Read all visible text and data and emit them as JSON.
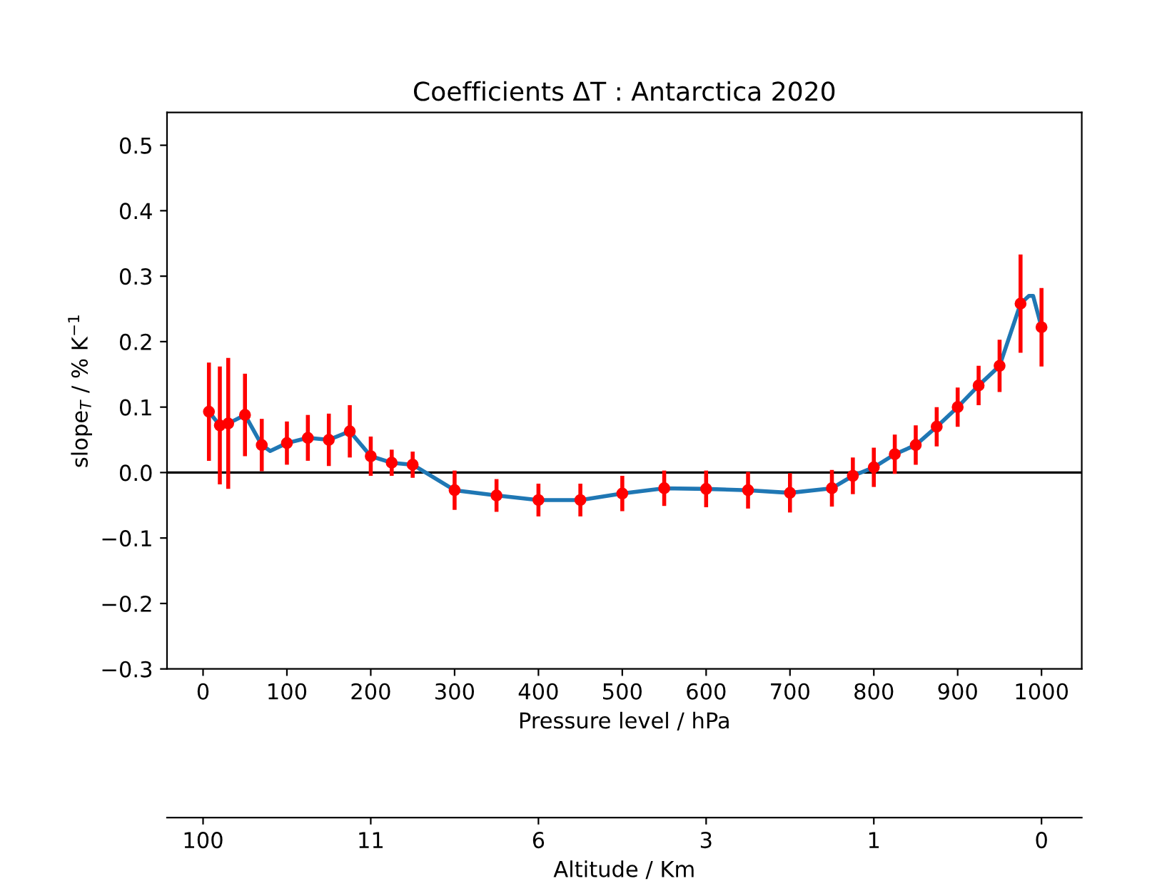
{
  "chart_data": {
    "type": "scatter",
    "title": "Coefficients ΔT : Antarctica 2020",
    "xlabel": "Pressure level / hPa",
    "ylabel": "slope$_{T}$ / % K$^{−1}$",
    "x2label": "Altitude / Km",
    "xlim": [
      -43,
      1048
    ],
    "xticks": [
      0,
      100,
      200,
      300,
      400,
      500,
      600,
      700,
      800,
      900,
      1000
    ],
    "annotations": [
      "100",
      "11",
      "6",
      "3",
      "1",
      "0"
    ],
    "ylim": [
      -0.3,
      0.55
    ],
    "yticks": [
      -0.3,
      -0.2,
      -0.1,
      {
        "value": 0,
        "label": "0.0"
      },
      0.1,
      0.2,
      0.3,
      0.4,
      0.5
    ],
    "grid": false,
    "ref_lines": [
      {
        "axis": "y",
        "value": 0,
        "color": "#000000"
      }
    ],
    "series": [
      {
        "type": "line",
        "color": "#1f77b4",
        "marker": "none",
        "line_style": "solid",
        "x": [
          7,
          20,
          30,
          50,
          70,
          80,
          100,
          125,
          150,
          175,
          200,
          225,
          250,
          300,
          350,
          400,
          450,
          500,
          550,
          600,
          650,
          700,
          750,
          775,
          800,
          825,
          850,
          875,
          900,
          925,
          950,
          975,
          985,
          990,
          1000
        ],
        "values": [
          0.093,
          0.072,
          0.075,
          0.088,
          0.042,
          0.033,
          0.045,
          0.053,
          0.05,
          0.063,
          0.025,
          0.015,
          0.012,
          -0.027,
          -0.035,
          -0.042,
          -0.042,
          -0.032,
          -0.024,
          -0.025,
          -0.027,
          -0.031,
          -0.024,
          -0.005,
          0.008,
          0.028,
          0.042,
          0.07,
          0.1,
          0.133,
          0.163,
          0.258,
          0.27,
          0.27,
          0.222
        ]
      },
      {
        "color": "#ff0000",
        "marker": "circle",
        "x": [
          7,
          20,
          30,
          50,
          70,
          100,
          125,
          150,
          175,
          200,
          225,
          250,
          300,
          350,
          400,
          450,
          500,
          550,
          600,
          650,
          700,
          750,
          775,
          800,
          825,
          850,
          875,
          900,
          925,
          950,
          975,
          1000
        ],
        "values": [
          0.093,
          0.072,
          0.075,
          0.088,
          0.042,
          0.045,
          0.053,
          0.05,
          0.063,
          0.025,
          0.015,
          0.012,
          -0.027,
          -0.035,
          -0.042,
          -0.042,
          -0.032,
          -0.024,
          -0.025,
          -0.027,
          -0.031,
          -0.024,
          -0.005,
          0.008,
          0.028,
          0.042,
          0.07,
          0.1,
          0.133,
          0.163,
          0.258,
          0.222
        ],
        "errors": [
          0.075,
          0.09,
          0.1,
          0.063,
          0.04,
          0.033,
          0.035,
          0.04,
          0.04,
          0.03,
          0.02,
          0.02,
          0.03,
          0.025,
          0.025,
          0.025,
          0.027,
          0.027,
          0.028,
          0.028,
          0.03,
          0.028,
          0.028,
          0.03,
          0.03,
          0.03,
          0.03,
          0.03,
          0.03,
          0.04,
          0.075,
          0.06
        ]
      }
    ]
  }
}
